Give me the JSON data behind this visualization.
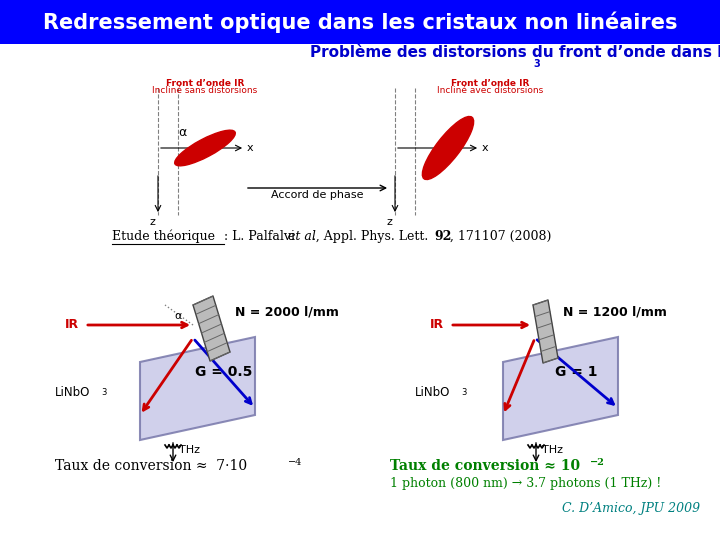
{
  "title": "Redressement optique dans les cristaux non linéaires",
  "title_bg": "#0000FF",
  "title_color": "#FFFFFF",
  "subtitle": "Problème des distorsions du front d’onde dans le LiNbO",
  "subtitle_3": "3",
  "subtitle_color": "#0000CC",
  "bg_color": "#FFFFFF",
  "taux_right_color": "#008000",
  "photon_text": "1 photon (800 nm) → 3.7 photons (1 THz) !",
  "photon_color": "#008000",
  "credit": "C. D’Amico, JPU 2009",
  "credit_color": "#008080",
  "left_N": "N = 2000 l/mm",
  "left_G": "G = 0.5",
  "right_N": "N = 1200 l/mm",
  "right_G": "G = 1",
  "LiNbO3": "LiNbO",
  "IR_label": "IR",
  "THz_label": "THz",
  "front_left_title": "Front d’onde IR",
  "front_left_sub": "Incliné sans distorsions",
  "front_right_title": "Front d’onde IR",
  "front_right_sub": "Incliné avec distorsions",
  "accord": "Accord de phase"
}
